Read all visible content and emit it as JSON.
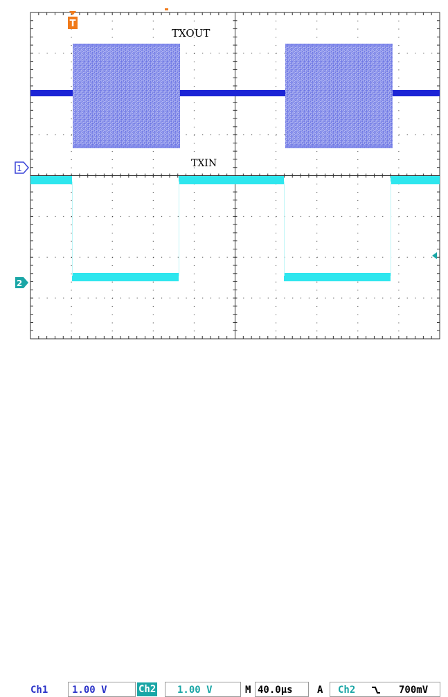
{
  "waveforms": {
    "channel_1_label": "TXOUT",
    "channel_2_label": "TXIN",
    "channel_1_marker": "1",
    "channel_2_marker": "2",
    "trigger_marker": "T"
  },
  "status": {
    "ch1_name": "Ch1",
    "ch1_scale": "1.00 V",
    "ch2_name": "Ch2",
    "ch2_scale": "1.00 V",
    "timebase_prefix": "M",
    "timebase_value": "40.0µs",
    "trigger_mode": "A",
    "trigger_source": "Ch2",
    "trigger_slope_icon": "falling-edge-icon",
    "trigger_level": "700mV"
  },
  "colors": {
    "channel_1": "#2a32d8",
    "channel_2": "#2ee6ee",
    "trigger": "#f07a1a",
    "grid": "#303030"
  }
}
